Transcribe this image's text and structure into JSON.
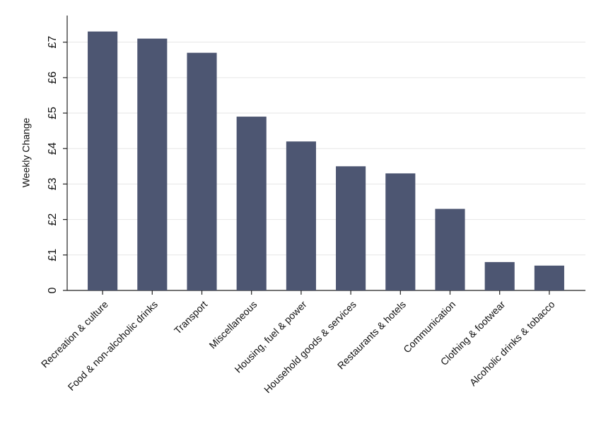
{
  "chart_data": {
    "type": "bar",
    "y_label": "Weekly Change",
    "categories": [
      "Recreation & culture",
      "Food & non-alcoholic drinks",
      "Transport",
      "Miscellaneous",
      "Housing, fuel & power",
      "Household goods & services",
      "Restaurants & hotels",
      "Communication",
      "Clothing & footwear",
      "Alcoholic drinks & tobacco"
    ],
    "values": [
      7.3,
      7.1,
      6.7,
      4.9,
      4.2,
      3.5,
      3.3,
      2.3,
      0.8,
      0.7
    ],
    "color": "#4d5672",
    "ylim": [
      0,
      7.75
    ],
    "yticks": [
      0,
      {
        "value": 1,
        "label": "£1"
      },
      {
        "value": 2,
        "label": "£2"
      },
      {
        "value": 3,
        "label": "£3"
      },
      {
        "value": 4,
        "label": "£4"
      },
      {
        "value": 5,
        "label": "£5"
      },
      {
        "value": 6,
        "label": "£6"
      },
      {
        "value": 7,
        "label": "£7"
      }
    ],
    "grid": true
  }
}
